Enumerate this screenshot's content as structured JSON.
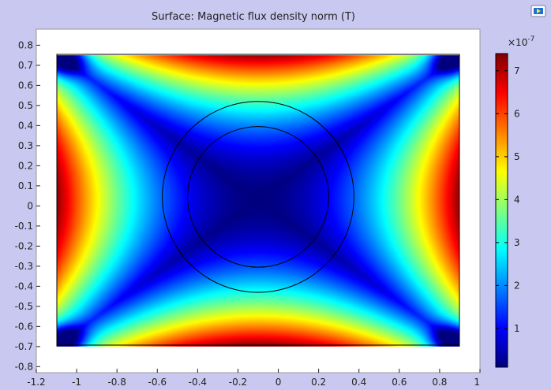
{
  "chart_data": {
    "type": "heatmap",
    "title": "Surface: Magnetic flux density norm (T)",
    "xlabel": "",
    "ylabel": "",
    "xlim": [
      -1.2,
      1.0
    ],
    "ylim": [
      -0.83,
      0.88
    ],
    "x_ticks": [
      "-1.2",
      "-1",
      "-0.8",
      "-0.6",
      "-0.4",
      "-0.2",
      "0",
      "0.2",
      "0.4",
      "0.6",
      "0.8",
      "1"
    ],
    "x_tick_values": [
      -1.2,
      -1.0,
      -0.8,
      -0.6,
      -0.4,
      -0.2,
      0.0,
      0.2,
      0.4,
      0.6,
      0.8,
      1.0
    ],
    "y_ticks": [
      "-0.8",
      "-0.7",
      "-0.6",
      "-0.5",
      "-0.4",
      "-0.3",
      "-0.2",
      "-0.1",
      "0",
      "0.1",
      "0.2",
      "0.3",
      "0.4",
      "0.5",
      "0.6",
      "0.7",
      "0.8"
    ],
    "y_tick_values": [
      -0.8,
      -0.7,
      -0.6,
      -0.5,
      -0.4,
      -0.3,
      -0.2,
      -0.1,
      0.0,
      0.1,
      0.2,
      0.3,
      0.4,
      0.5,
      0.6,
      0.7,
      0.8
    ],
    "domain": {
      "x": [
        -1.1,
        0.9
      ],
      "y": [
        -0.7,
        0.75
      ]
    },
    "field_center": {
      "x": -0.1,
      "y": 0.03
    },
    "circles": [
      {
        "cx": -0.1,
        "cy": 0.045,
        "r": 0.475
      },
      {
        "cx": -0.1,
        "cy": 0.045,
        "r": 0.35
      }
    ],
    "colormap": "jet",
    "color_range": [
      0.1,
      7.4
    ],
    "colorbar_multiplier": "×10",
    "colorbar_exponent": "-7",
    "colorbar_ticks": [
      "1",
      "2",
      "3",
      "4",
      "5",
      "6",
      "7"
    ],
    "colorbar_tick_values": [
      1,
      2,
      3,
      4,
      5,
      6,
      7
    ],
    "grid": false,
    "background": "#c8c8f0",
    "plot_background": "#ffffff",
    "accent_icon": "plot-window-icon"
  }
}
